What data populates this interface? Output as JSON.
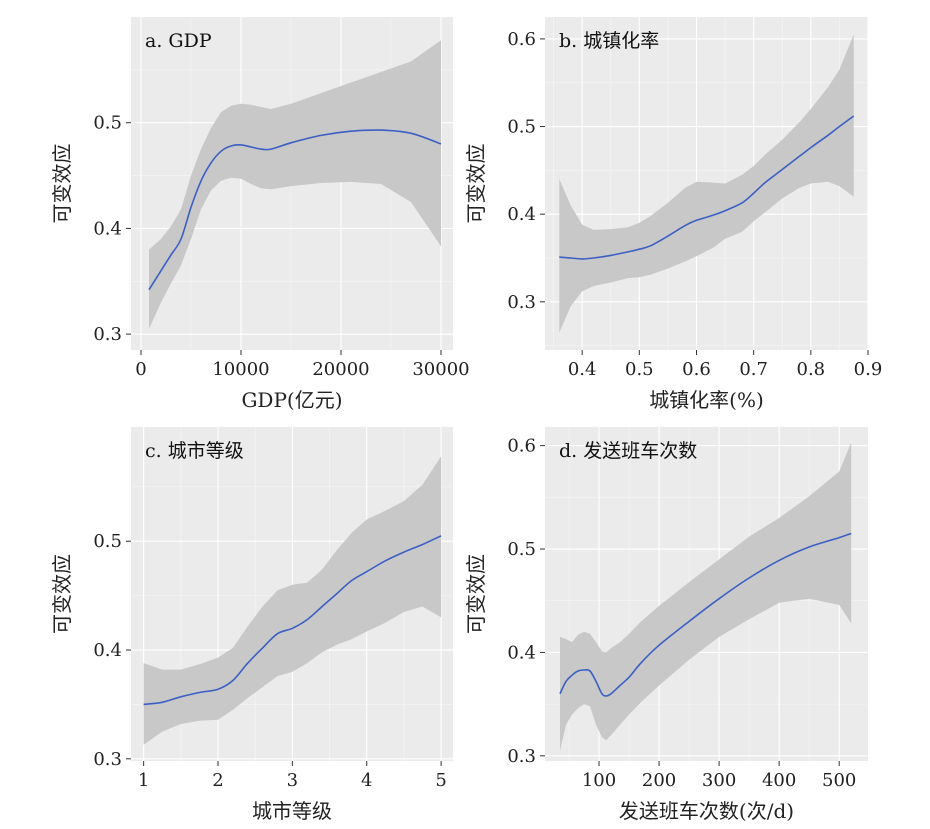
{
  "chart_data": [
    {
      "id": "a",
      "type": "line",
      "title": "a. GDP",
      "xlabel": "GDP(亿元)",
      "ylabel": "可变效应",
      "xlim": [
        -1000,
        31200
      ],
      "ylim": [
        0.285,
        0.6
      ],
      "xticks": [
        0,
        10000,
        20000,
        30000
      ],
      "xtick_labels": [
        "0",
        "10000",
        "20000",
        "30000"
      ],
      "yticks": [
        0.3,
        0.4,
        0.5
      ],
      "ytick_labels": [
        "0.3",
        "0.4",
        "0.5"
      ],
      "series": [
        {
          "x": [
            800,
            2000,
            3000,
            4000,
            5000,
            6000,
            7000,
            8000,
            9000,
            10000,
            11000,
            12000,
            13000,
            15000,
            18000,
            21000,
            24000,
            27000,
            30000
          ],
          "y": [
            0.342,
            0.36,
            0.375,
            0.39,
            0.42,
            0.445,
            0.462,
            0.473,
            0.478,
            0.479,
            0.477,
            0.475,
            0.475,
            0.481,
            0.488,
            0.492,
            0.493,
            0.49,
            0.48
          ],
          "lower": [
            0.305,
            0.33,
            0.348,
            0.365,
            0.39,
            0.418,
            0.436,
            0.445,
            0.448,
            0.447,
            0.442,
            0.438,
            0.437,
            0.44,
            0.443,
            0.444,
            0.442,
            0.425,
            0.383
          ],
          "upper": [
            0.38,
            0.39,
            0.402,
            0.418,
            0.45,
            0.475,
            0.495,
            0.51,
            0.516,
            0.518,
            0.517,
            0.515,
            0.513,
            0.518,
            0.528,
            0.538,
            0.548,
            0.558,
            0.578
          ]
        }
      ]
    },
    {
      "id": "b",
      "type": "line",
      "title": "b. 城镇化率",
      "xlabel": "城镇化率(%)",
      "ylabel": "可变效应",
      "xlim": [
        0.335,
        0.9
      ],
      "ylim": [
        0.245,
        0.625
      ],
      "xticks": [
        0.4,
        0.5,
        0.6,
        0.7,
        0.8,
        0.9
      ],
      "xtick_labels": [
        "0.4",
        "0.5",
        "0.6",
        "0.7",
        "0.8",
        "0.9"
      ],
      "yticks": [
        0.3,
        0.4,
        0.5,
        0.6
      ],
      "ytick_labels": [
        "0.3",
        "0.4",
        "0.5",
        "0.6"
      ],
      "series": [
        {
          "x": [
            0.36,
            0.38,
            0.4,
            0.42,
            0.45,
            0.48,
            0.5,
            0.52,
            0.55,
            0.58,
            0.6,
            0.63,
            0.65,
            0.68,
            0.7,
            0.72,
            0.75,
            0.78,
            0.8,
            0.83,
            0.85,
            0.875
          ],
          "y": [
            0.351,
            0.35,
            0.349,
            0.35,
            0.353,
            0.357,
            0.36,
            0.364,
            0.375,
            0.387,
            0.393,
            0.399,
            0.404,
            0.413,
            0.424,
            0.436,
            0.451,
            0.466,
            0.476,
            0.49,
            0.5,
            0.512
          ],
          "lower": [
            0.265,
            0.295,
            0.312,
            0.318,
            0.322,
            0.327,
            0.328,
            0.331,
            0.338,
            0.346,
            0.352,
            0.362,
            0.372,
            0.38,
            0.392,
            0.402,
            0.418,
            0.43,
            0.435,
            0.437,
            0.432,
            0.42
          ],
          "upper": [
            0.44,
            0.41,
            0.388,
            0.382,
            0.383,
            0.385,
            0.39,
            0.398,
            0.413,
            0.43,
            0.437,
            0.436,
            0.435,
            0.445,
            0.455,
            0.468,
            0.485,
            0.505,
            0.52,
            0.545,
            0.565,
            0.605
          ]
        }
      ]
    },
    {
      "id": "c",
      "type": "line",
      "title": "c. 城市等级",
      "xlabel": "城市等级",
      "ylabel": "可变效应",
      "xlim": [
        0.83,
        5.16
      ],
      "ylim": [
        0.298,
        0.605
      ],
      "xticks": [
        1,
        2,
        3,
        4,
        5
      ],
      "xtick_labels": [
        "1",
        "2",
        "3",
        "4",
        "5"
      ],
      "yticks": [
        0.3,
        0.4,
        0.5
      ],
      "ytick_labels": [
        "0.3",
        "0.4",
        "0.5"
      ],
      "series": [
        {
          "x": [
            1,
            1.25,
            1.5,
            1.75,
            2,
            2.2,
            2.4,
            2.6,
            2.8,
            3,
            3.2,
            3.4,
            3.6,
            3.8,
            4,
            4.25,
            4.5,
            4.75,
            5
          ],
          "y": [
            0.35,
            0.352,
            0.357,
            0.361,
            0.364,
            0.372,
            0.388,
            0.402,
            0.415,
            0.42,
            0.428,
            0.44,
            0.452,
            0.464,
            0.472,
            0.482,
            0.49,
            0.497,
            0.505
          ],
          "lower": [
            0.313,
            0.325,
            0.332,
            0.335,
            0.336,
            0.345,
            0.356,
            0.366,
            0.376,
            0.38,
            0.388,
            0.398,
            0.405,
            0.41,
            0.417,
            0.425,
            0.435,
            0.44,
            0.43
          ],
          "upper": [
            0.388,
            0.382,
            0.382,
            0.387,
            0.393,
            0.402,
            0.422,
            0.44,
            0.455,
            0.46,
            0.462,
            0.474,
            0.492,
            0.508,
            0.52,
            0.528,
            0.537,
            0.552,
            0.578
          ]
        }
      ]
    },
    {
      "id": "d",
      "type": "line",
      "title": "d. 发送班车次数",
      "xlabel": "发送班车次数(次/d)",
      "ylabel": "可变效应",
      "xlim": [
        10,
        548
      ],
      "ylim": [
        0.295,
        0.618
      ],
      "xticks": [
        100,
        200,
        300,
        400,
        500
      ],
      "xtick_labels": [
        "100",
        "200",
        "300",
        "400",
        "500"
      ],
      "yticks": [
        0.3,
        0.4,
        0.5,
        0.6
      ],
      "ytick_labels": [
        "0.3",
        "0.4",
        "0.5",
        "0.6"
      ],
      "series": [
        {
          "x": [
            35,
            45,
            55,
            65,
            75,
            85,
            95,
            105,
            112,
            120,
            135,
            150,
            170,
            200,
            250,
            300,
            350,
            400,
            450,
            500,
            520
          ],
          "y": [
            0.36,
            0.372,
            0.378,
            0.382,
            0.383,
            0.382,
            0.372,
            0.36,
            0.358,
            0.36,
            0.368,
            0.376,
            0.39,
            0.407,
            0.43,
            0.452,
            0.472,
            0.489,
            0.502,
            0.511,
            0.515
          ],
          "lower": [
            0.305,
            0.33,
            0.34,
            0.346,
            0.35,
            0.348,
            0.33,
            0.318,
            0.315,
            0.32,
            0.33,
            0.34,
            0.352,
            0.368,
            0.393,
            0.415,
            0.432,
            0.448,
            0.452,
            0.446,
            0.428
          ],
          "upper": [
            0.415,
            0.413,
            0.41,
            0.417,
            0.42,
            0.418,
            0.41,
            0.401,
            0.4,
            0.404,
            0.41,
            0.418,
            0.43,
            0.445,
            0.468,
            0.49,
            0.512,
            0.53,
            0.551,
            0.575,
            0.603
          ]
        }
      ]
    }
  ]
}
